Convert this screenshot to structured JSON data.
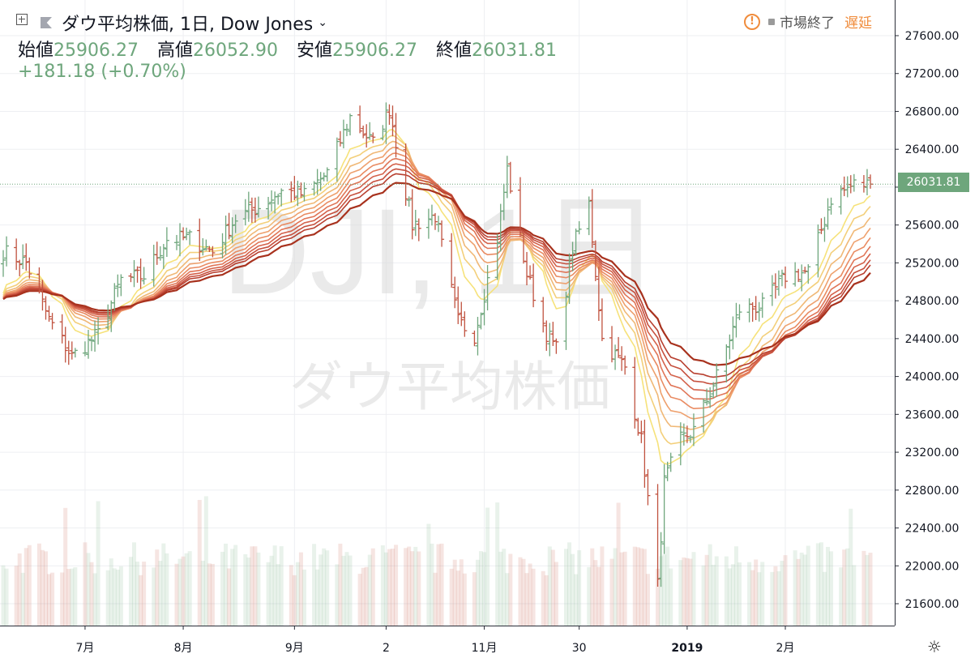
{
  "header": {
    "symbol": "ダウ平均株価, 1日, Dow Jones",
    "labels": {
      "open": "始値",
      "high": "高値",
      "low": "安値",
      "close": "終値"
    },
    "open": "25906.27",
    "high": "26052.90",
    "low": "25906.27",
    "close": "26031.81",
    "change": "+181.18 (+0.70%)"
  },
  "status": {
    "market": "市場終了",
    "delay": "遅延"
  },
  "watermark": {
    "ticker": "DJI, 1日",
    "name": "ダウ平均株価"
  },
  "last_price_label": "26031.81",
  "colors": {
    "up": "#6ea67c",
    "down": "#c0523f",
    "ribbon_fast": "#f6e27a",
    "ribbon_slow": "#a8321e"
  },
  "icons": [
    "add-icon",
    "flag-icon",
    "chevron-down-icon",
    "warning-icon",
    "dot-icon",
    "settings-icon"
  ],
  "chart_data": {
    "type": "candlestick",
    "y_ticks": [
      "27600.00",
      "27200.00",
      "26800.00",
      "26400.00",
      "26000.00",
      "25600.00",
      "25200.00",
      "24800.00",
      "24400.00",
      "24000.00",
      "23600.00",
      "23200.00",
      "22800.00",
      "22400.00",
      "22000.00",
      "21600.00"
    ],
    "ylim": [
      21400,
      27950
    ],
    "x_ticks": [
      "7月",
      "8月",
      "9月",
      "2",
      "11月",
      "30",
      "2019",
      "2月"
    ],
    "x_tick_dates": [
      "2018-07-02",
      "2018-08-01",
      "2018-09-04",
      "2018-10-02",
      "2018-11-01",
      "2018-11-30",
      "2019-01-02",
      "2019-02-01"
    ],
    "date_range": [
      "2018-06-07",
      "2019-02-27"
    ],
    "close_anchors": [
      [
        "2018-06-07",
        25320
      ],
      [
        "2018-06-14",
        25200
      ],
      [
        "2018-06-21",
        24600
      ],
      [
        "2018-06-28",
        24210
      ],
      [
        "2018-07-06",
        24450
      ],
      [
        "2018-07-13",
        25020
      ],
      [
        "2018-07-20",
        25060
      ],
      [
        "2018-07-27",
        25450
      ],
      [
        "2018-08-03",
        25460
      ],
      [
        "2018-08-10",
        25320
      ],
      [
        "2018-08-17",
        25670
      ],
      [
        "2018-08-24",
        25790
      ],
      [
        "2018-08-31",
        25960
      ],
      [
        "2018-09-07",
        25920
      ],
      [
        "2018-09-14",
        26150
      ],
      [
        "2018-09-21",
        26740
      ],
      [
        "2018-09-28",
        26460
      ],
      [
        "2018-10-03",
        26830
      ],
      [
        "2018-10-10",
        25600
      ],
      [
        "2018-10-17",
        25700
      ],
      [
        "2018-10-24",
        24580
      ],
      [
        "2018-10-29",
        24440
      ],
      [
        "2018-11-05",
        25460
      ],
      [
        "2018-11-08",
        26190
      ],
      [
        "2018-11-14",
        25080
      ],
      [
        "2018-11-20",
        24460
      ],
      [
        "2018-11-23",
        24290
      ],
      [
        "2018-11-28",
        25360
      ],
      [
        "2018-12-03",
        25820
      ],
      [
        "2018-12-07",
        24390
      ],
      [
        "2018-12-14",
        24100
      ],
      [
        "2018-12-19",
        23320
      ],
      [
        "2018-12-24",
        21790
      ],
      [
        "2018-12-26",
        22880
      ],
      [
        "2018-12-31",
        23330
      ],
      [
        "2019-01-04",
        23430
      ],
      [
        "2019-01-11",
        24000
      ],
      [
        "2019-01-18",
        24710
      ],
      [
        "2019-01-25",
        24740
      ],
      [
        "2019-02-01",
        25060
      ],
      [
        "2019-02-08",
        25110
      ],
      [
        "2019-02-15",
        25880
      ],
      [
        "2019-02-22",
        26030
      ],
      [
        "2019-02-27",
        26030
      ]
    ],
    "ma_ribbon_start": 24800,
    "ma_ribbon_periods": [
      10,
      14,
      18,
      22,
      26,
      30,
      34,
      38,
      42,
      50
    ],
    "volume_max_bar": 22600,
    "last_close": 26031.81
  }
}
